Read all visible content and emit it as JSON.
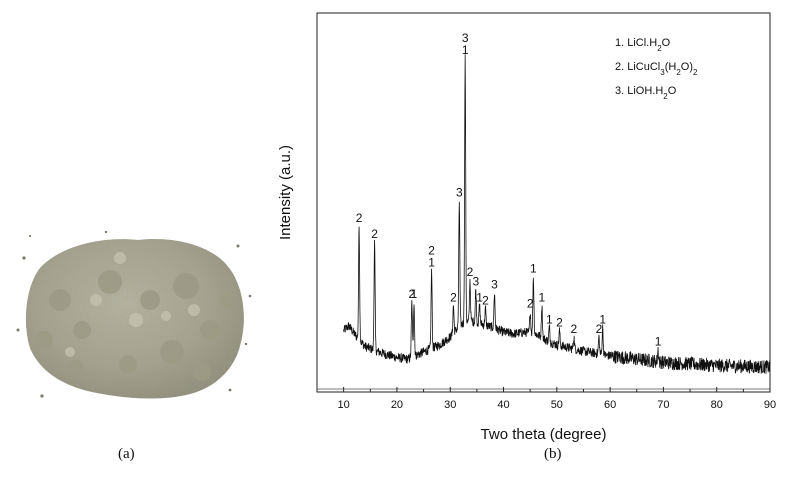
{
  "captions": {
    "a": "(a)",
    "b": "(b)"
  },
  "photo": {
    "subject": "grey powder pile"
  },
  "chart_data": {
    "type": "line",
    "xlabel": "Two theta (degree)",
    "ylabel": "Intensity (a.u.)",
    "xlim": [
      5,
      90
    ],
    "ylim": [
      0,
      100
    ],
    "xticks": [
      10,
      20,
      30,
      40,
      50,
      60,
      70,
      80,
      90
    ],
    "grid": false,
    "legend_position": "top-right",
    "legend": [
      "1. LiCl.H2O",
      "2. LiCuCl3(H2O)2",
      "3. LiOH.H2O"
    ],
    "baseline": [
      [
        10.0,
        14.0
      ],
      [
        11.0,
        15.5
      ],
      [
        12.0,
        13.0
      ],
      [
        14.0,
        9.0
      ],
      [
        17.0,
        7.0
      ],
      [
        20.0,
        5.5
      ],
      [
        22.0,
        5.0
      ],
      [
        24.0,
        6.5
      ],
      [
        26.0,
        8.0
      ],
      [
        28.0,
        9.5
      ],
      [
        30.0,
        12.0
      ],
      [
        31.0,
        14.0
      ],
      [
        32.0,
        16.0
      ],
      [
        34.0,
        17.0
      ],
      [
        36.0,
        16.0
      ],
      [
        38.0,
        15.0
      ],
      [
        40.0,
        13.5
      ],
      [
        42.0,
        13.0
      ],
      [
        44.0,
        13.5
      ],
      [
        46.0,
        13.0
      ],
      [
        48.0,
        11.0
      ],
      [
        50.0,
        9.5
      ],
      [
        55.0,
        7.5
      ],
      [
        60.0,
        6.0
      ],
      [
        65.0,
        5.0
      ],
      [
        70.0,
        4.0
      ],
      [
        80.0,
        3.0
      ],
      [
        90.0,
        2.5
      ]
    ],
    "peaks": [
      {
        "x": 12.9,
        "y": 47,
        "label": "2"
      },
      {
        "x": 15.8,
        "y": 42,
        "label": "2"
      },
      {
        "x": 22.8,
        "y": 23,
        "label": "2"
      },
      {
        "x": 23.2,
        "y": 23,
        "label": "1"
      },
      {
        "x": 26.5,
        "y": 33,
        "label": "2 1"
      },
      {
        "x": 30.6,
        "y": 22,
        "label": "2"
      },
      {
        "x": 31.7,
        "y": 55,
        "label": "3"
      },
      {
        "x": 32.8,
        "y": 100,
        "label": "3 1"
      },
      {
        "x": 33.7,
        "y": 30,
        "label": "2"
      },
      {
        "x": 34.8,
        "y": 27,
        "label": "3"
      },
      {
        "x": 35.5,
        "y": 22,
        "label": "1"
      },
      {
        "x": 36.6,
        "y": 21,
        "label": "2"
      },
      {
        "x": 38.3,
        "y": 26,
        "label": "3"
      },
      {
        "x": 45.0,
        "y": 20,
        "label": "2"
      },
      {
        "x": 45.6,
        "y": 31,
        "label": "1"
      },
      {
        "x": 47.2,
        "y": 22,
        "label": "1"
      },
      {
        "x": 48.6,
        "y": 15,
        "label": "1"
      },
      {
        "x": 50.5,
        "y": 14,
        "label": "2"
      },
      {
        "x": 53.2,
        "y": 12,
        "label": "2"
      },
      {
        "x": 57.9,
        "y": 12,
        "label": "2"
      },
      {
        "x": 58.6,
        "y": 15,
        "label": "1"
      },
      {
        "x": 69.0,
        "y": 8,
        "label": "1"
      }
    ]
  }
}
